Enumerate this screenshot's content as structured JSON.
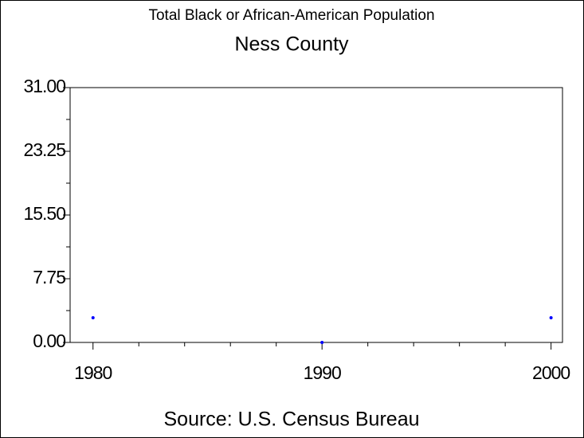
{
  "chart_data": {
    "type": "scatter",
    "title": "Total Black or African-American Population",
    "subtitle": "Ness County",
    "source": "Source: U.S. Census Bureau",
    "x": [
      1980,
      1990,
      2000
    ],
    "series": [
      {
        "color": "#0000ff",
        "values": [
          3,
          0,
          3
        ]
      }
    ],
    "xlim": [
      1979,
      2000.5
    ],
    "xticks": [
      1980,
      1990,
      2000
    ],
    "ylim": [
      0,
      31
    ],
    "yticks": [
      {
        "value": 0,
        "label": "0.00"
      },
      7.75,
      {
        "value": 15.5,
        "label": "15.50"
      },
      23.25,
      {
        "value": 31,
        "label": "31.00"
      }
    ]
  }
}
